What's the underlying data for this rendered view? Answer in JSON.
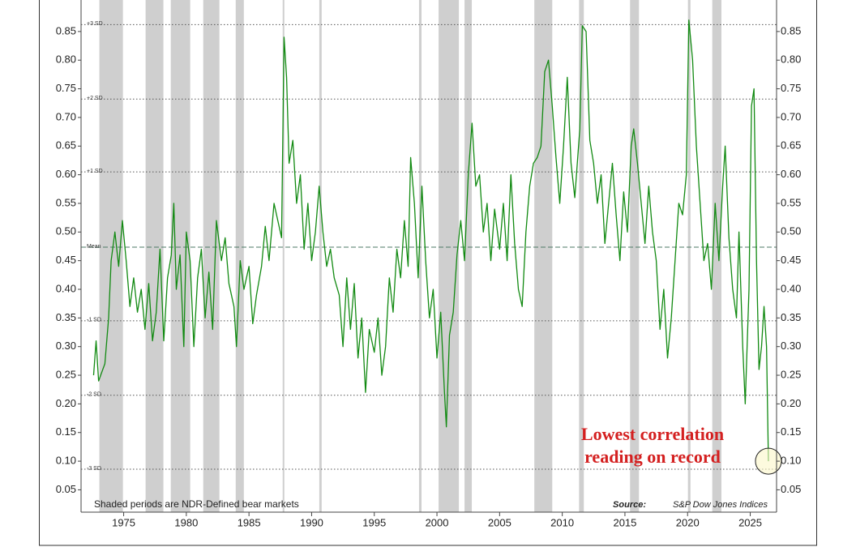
{
  "chart_data": {
    "type": "line",
    "xlim": [
      1971.6,
      2027.1
    ],
    "ylim": [
      0.011,
      0.905
    ],
    "xticks": [
      1975,
      1980,
      1985,
      1990,
      1995,
      2000,
      2005,
      2010,
      2015,
      2020,
      2025
    ],
    "yticks": [
      0.05,
      {
        "value": 0.1,
        "label": "0.10"
      },
      0.15,
      {
        "value": 0.2,
        "label": "0.20"
      },
      0.25,
      {
        "value": 0.3,
        "label": "0.30"
      },
      0.35,
      {
        "value": 0.4,
        "label": "0.40"
      },
      0.45,
      {
        "value": 0.5,
        "label": "0.50"
      },
      0.55,
      {
        "value": 0.6,
        "label": "0.60"
      },
      0.65,
      {
        "value": 0.7,
        "label": "0.70"
      },
      0.75,
      {
        "value": 0.8,
        "label": "0.80"
      },
      0.85
    ],
    "shade_color": "#cfcfcf",
    "shaded": [
      [
        1973.06,
        1974.94
      ],
      [
        1976.75,
        1978.17
      ],
      [
        1978.76,
        1980.31
      ],
      [
        1981.35,
        1982.64
      ],
      [
        1983.94,
        1984.59
      ],
      [
        1987.69,
        1987.82
      ],
      [
        1990.61,
        1990.8
      ],
      [
        1998.57,
        1998.77
      ],
      [
        2000.13,
        2001.75
      ],
      [
        2002.2,
        2002.78
      ],
      [
        2007.77,
        2009.2
      ],
      [
        2011.34,
        2011.72
      ],
      [
        2015.41,
        2016.12
      ],
      [
        2020.03,
        2020.23
      ],
      [
        2021.97,
        2022.7
      ]
    ],
    "shaded_note": "Shaded periods are NDR-Defined bear markets",
    "source_label": "Source:",
    "source": "S&P Dow Jones Indices",
    "ref_lines": [
      {
        "label": "+3 SD",
        "value": 0.862,
        "style": "dotted"
      },
      {
        "label": "+2 SD",
        "value": 0.732,
        "style": "dotted"
      },
      {
        "label": "+1 SD",
        "value": 0.605,
        "style": "dotted"
      },
      {
        "label": "Mean",
        "value": 0.4735,
        "style": "dashed"
      },
      {
        "label": "-1 SD",
        "value": 0.345,
        "style": "dotted"
      },
      {
        "label": "-2 SD",
        "value": 0.215,
        "style": "dotted"
      },
      {
        "label": "-3 SD",
        "value": 0.086,
        "style": "dotted"
      }
    ],
    "annotation": [
      "Lowest correlation",
      "reading on record"
    ],
    "x": [
      1972.6,
      1972.8,
      1973.0,
      1973.5,
      1973.8,
      1974.0,
      1974.3,
      1974.6,
      1974.9,
      1975.2,
      1975.5,
      1975.8,
      1976.1,
      1976.4,
      1976.7,
      1977.0,
      1977.3,
      1977.6,
      1977.9,
      1978.2,
      1978.5,
      1978.8,
      1979.0,
      1979.2,
      1979.5,
      1979.8,
      1980.0,
      1980.3,
      1980.6,
      1980.9,
      1981.2,
      1981.5,
      1981.8,
      1982.1,
      1982.4,
      1982.8,
      1983.1,
      1983.4,
      1983.8,
      1984.0,
      1984.3,
      1984.6,
      1985.0,
      1985.3,
      1985.6,
      1986.0,
      1986.3,
      1986.6,
      1987.0,
      1987.3,
      1987.6,
      1987.8,
      1988.0,
      1988.2,
      1988.5,
      1988.8,
      1989.1,
      1989.4,
      1989.7,
      1990.0,
      1990.3,
      1990.6,
      1990.9,
      1991.2,
      1991.5,
      1991.8,
      1992.2,
      1992.5,
      1992.8,
      1993.1,
      1993.4,
      1993.7,
      1994.0,
      1994.3,
      1994.6,
      1995.0,
      1995.3,
      1995.6,
      1995.9,
      1996.2,
      1996.5,
      1996.8,
      1997.1,
      1997.4,
      1997.7,
      1997.9,
      1998.2,
      1998.5,
      1998.8,
      1999.1,
      1999.4,
      1999.7,
      2000.0,
      2000.3,
      2000.6,
      2000.75,
      2001.0,
      2001.3,
      2001.6,
      2001.9,
      2002.2,
      2002.5,
      2002.8,
      2003.1,
      2003.4,
      2003.7,
      2004.0,
      2004.3,
      2004.6,
      2005.0,
      2005.3,
      2005.6,
      2005.9,
      2006.2,
      2006.5,
      2006.8,
      2007.1,
      2007.4,
      2007.7,
      2008.0,
      2008.3,
      2008.6,
      2008.9,
      2009.2,
      2009.5,
      2009.8,
      2010.1,
      2010.4,
      2010.7,
      2011.0,
      2011.4,
      2011.6,
      2011.9,
      2012.2,
      2012.5,
      2012.8,
      2013.1,
      2013.4,
      2013.7,
      2014.0,
      2014.3,
      2014.6,
      2014.9,
      2015.2,
      2015.5,
      2015.7,
      2016.0,
      2016.3,
      2016.6,
      2016.9,
      2017.2,
      2017.5,
      2017.8,
      2018.1,
      2018.4,
      2018.7,
      2019.0,
      2019.3,
      2019.6,
      2019.9,
      2020.1,
      2020.4,
      2020.7,
      2021.0,
      2021.3,
      2021.6,
      2021.9,
      2022.2,
      2022.5,
      2022.8,
      2023.0,
      2023.3,
      2023.6,
      2023.9,
      2024.1,
      2024.4,
      2024.6,
      2024.9,
      2025.1,
      2025.3,
      2025.5,
      2025.7,
      2025.9,
      2026.1,
      2026.3,
      2026.45
    ],
    "series": [
      {
        "color": "#128a12",
        "values": [
          0.25,
          0.31,
          0.24,
          0.27,
          0.35,
          0.45,
          0.5,
          0.44,
          0.52,
          0.45,
          0.37,
          0.42,
          0.36,
          0.4,
          0.33,
          0.41,
          0.31,
          0.36,
          0.47,
          0.31,
          0.42,
          0.46,
          0.55,
          0.4,
          0.46,
          0.3,
          0.5,
          0.45,
          0.3,
          0.42,
          0.47,
          0.35,
          0.43,
          0.33,
          0.52,
          0.45,
          0.49,
          0.41,
          0.37,
          0.3,
          0.45,
          0.4,
          0.44,
          0.34,
          0.39,
          0.44,
          0.51,
          0.45,
          0.55,
          0.52,
          0.49,
          0.84,
          0.77,
          0.62,
          0.66,
          0.55,
          0.6,
          0.47,
          0.55,
          0.45,
          0.5,
          0.58,
          0.5,
          0.44,
          0.47,
          0.42,
          0.39,
          0.3,
          0.42,
          0.33,
          0.41,
          0.28,
          0.35,
          0.22,
          0.33,
          0.29,
          0.35,
          0.25,
          0.3,
          0.42,
          0.36,
          0.47,
          0.42,
          0.52,
          0.44,
          0.63,
          0.55,
          0.42,
          0.58,
          0.45,
          0.35,
          0.4,
          0.28,
          0.36,
          0.22,
          0.16,
          0.32,
          0.36,
          0.46,
          0.52,
          0.45,
          0.6,
          0.69,
          0.58,
          0.6,
          0.5,
          0.55,
          0.45,
          0.54,
          0.47,
          0.55,
          0.45,
          0.6,
          0.48,
          0.4,
          0.37,
          0.5,
          0.58,
          0.62,
          0.63,
          0.65,
          0.78,
          0.8,
          0.72,
          0.63,
          0.55,
          0.65,
          0.77,
          0.62,
          0.56,
          0.68,
          0.86,
          0.85,
          0.66,
          0.62,
          0.55,
          0.6,
          0.48,
          0.55,
          0.62,
          0.53,
          0.45,
          0.57,
          0.5,
          0.65,
          0.68,
          0.62,
          0.55,
          0.48,
          0.58,
          0.5,
          0.45,
          0.33,
          0.4,
          0.28,
          0.35,
          0.45,
          0.55,
          0.53,
          0.6,
          0.87,
          0.8,
          0.65,
          0.55,
          0.45,
          0.48,
          0.4,
          0.55,
          0.45,
          0.58,
          0.65,
          0.49,
          0.4,
          0.35,
          0.5,
          0.3,
          0.2,
          0.4,
          0.72,
          0.75,
          0.45,
          0.26,
          0.3,
          0.37,
          0.3,
          0.1
        ]
      }
    ]
  }
}
